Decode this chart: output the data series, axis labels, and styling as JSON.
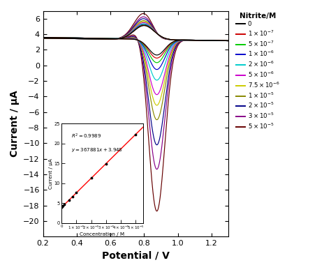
{
  "xlabel": "Potential / V",
  "ylabel": "Current / μA",
  "xlim": [
    0.2,
    1.3
  ],
  "ylim": [
    -22,
    7
  ],
  "xticks": [
    0.2,
    0.4,
    0.6,
    0.8,
    1.0,
    1.2
  ],
  "yticks": [
    -20,
    -18,
    -16,
    -14,
    -12,
    -10,
    -8,
    -6,
    -4,
    -2,
    0,
    2,
    4,
    6
  ],
  "concentrations": [
    {
      "color": "#000000",
      "scale": 0.0
    },
    {
      "color": "#cc0000",
      "scale": 0.04
    },
    {
      "color": "#00cc00",
      "scale": 0.1
    },
    {
      "color": "#0000cc",
      "scale": 0.19
    },
    {
      "color": "#00cccc",
      "scale": 0.33
    },
    {
      "color": "#cc00cc",
      "scale": 0.52
    },
    {
      "color": "#cccc00",
      "scale": 0.66
    },
    {
      "color": "#888800",
      "scale": 0.85
    },
    {
      "color": "#000088",
      "scale": 1.18
    },
    {
      "color": "#880088",
      "scale": 1.5
    },
    {
      "color": "#660000",
      "scale": 2.05
    }
  ],
  "legend_title": "Nitrite/M",
  "legend_labels": [
    "0",
    "$1\\times10^{-7}$",
    "$5\\times10^{-7}$",
    "$1\\times10^{-6}$",
    "$2\\times10^{-6}$",
    "$5\\times10^{-6}$",
    "$7.5\\times10^{-6}$",
    "$1\\times10^{-5}$",
    "$2\\times10^{-5}$",
    "$3\\times10^{-5}$",
    "$5\\times10^{-5}$"
  ],
  "inset_r2": "$R^2 = 0.9989$",
  "inset_eq": "$y = 367881x + 3.948$",
  "inset_xlabel": "Concentration / M",
  "inset_ylabel": "Current / μA",
  "inset_concs": [
    0,
    1e-07,
    5e-07,
    1e-06,
    2e-06,
    5e-06,
    7.5e-06,
    1e-05,
    2e-05,
    3e-05,
    5e-05
  ]
}
